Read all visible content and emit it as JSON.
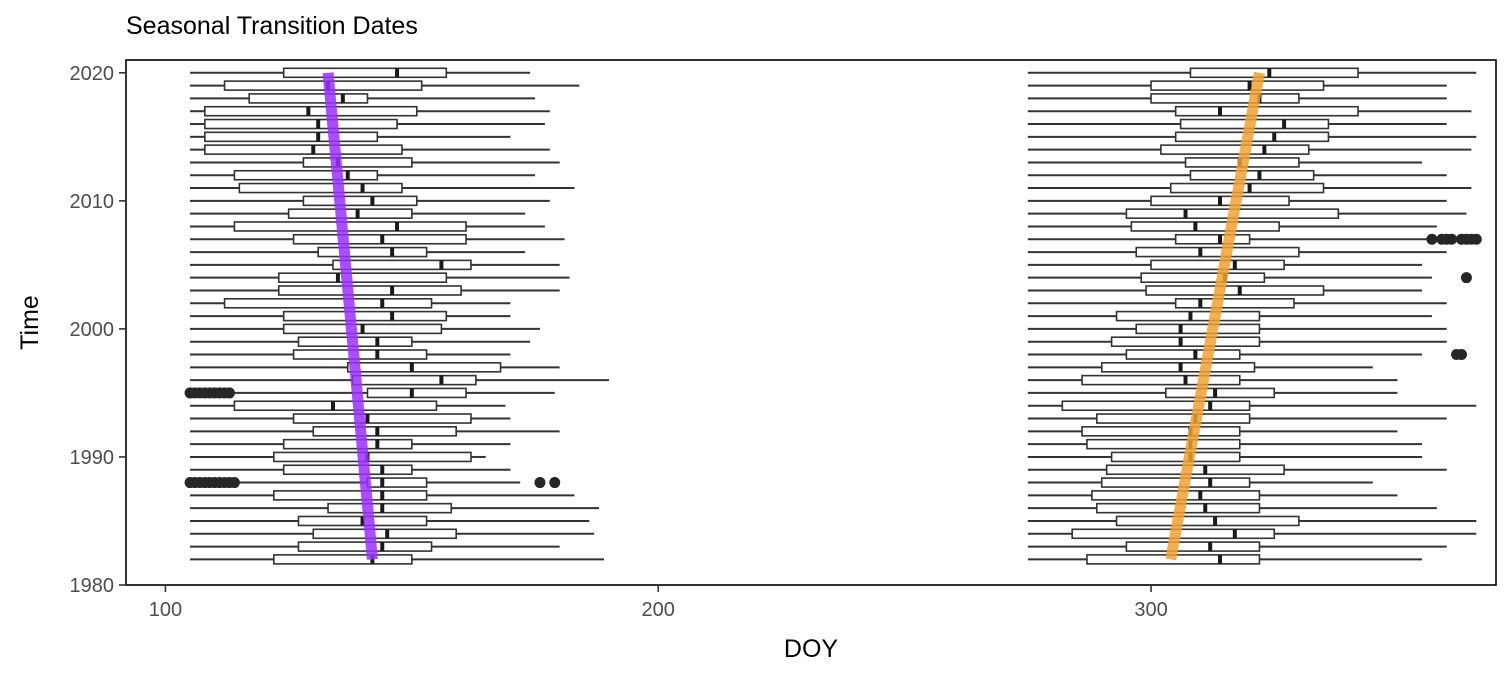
{
  "chart_data": {
    "type": "boxplot",
    "title": "Seasonal Transition Dates",
    "xlabel": "DOY",
    "ylabel": "Time",
    "xlim": [
      92,
      370
    ],
    "ylim": [
      1980,
      2021
    ],
    "x_ticks": [
      100,
      200,
      300
    ],
    "y_ticks": [
      1980,
      1990,
      2000,
      2010,
      2020
    ],
    "grid": false,
    "colors": {
      "spring_trend": "#9b30ff",
      "fall_trend": "#f0a030",
      "box": "#333333"
    },
    "trend_lines": [
      {
        "id": "spring",
        "from": [
          142,
          1982
        ],
        "to": [
          133,
          2020
        ]
      },
      {
        "id": "fall",
        "from": [
          304,
          1982
        ],
        "to": [
          322,
          2020
        ]
      }
    ],
    "series": [
      {
        "id": "spring",
        "boxes": [
          {
            "year": 1982,
            "w0": 105,
            "q1": 122,
            "med": 142,
            "q3": 150,
            "w1": 189
          },
          {
            "year": 1983,
            "w0": 105,
            "q1": 127,
            "med": 144,
            "q3": 154,
            "w1": 180
          },
          {
            "year": 1984,
            "w0": 105,
            "q1": 130,
            "med": 145,
            "q3": 159,
            "w1": 187
          },
          {
            "year": 1985,
            "w0": 105,
            "q1": 127,
            "med": 140,
            "q3": 153,
            "w1": 186
          },
          {
            "year": 1986,
            "w0": 105,
            "q1": 133,
            "med": 144,
            "q3": 158,
            "w1": 188
          },
          {
            "year": 1987,
            "w0": 105,
            "q1": 122,
            "med": 144,
            "q3": 153,
            "w1": 183
          },
          {
            "year": 1988,
            "w0": 105,
            "q1": 141,
            "med": 144,
            "q3": 153,
            "w1": 172
          },
          {
            "year": 1989,
            "w0": 105,
            "q1": 124,
            "med": 144,
            "q3": 150,
            "w1": 170
          },
          {
            "year": 1990,
            "w0": 105,
            "q1": 122,
            "med": 141,
            "q3": 162,
            "w1": 165
          },
          {
            "year": 1991,
            "w0": 105,
            "q1": 124,
            "med": 143,
            "q3": 150,
            "w1": 170
          },
          {
            "year": 1992,
            "w0": 105,
            "q1": 130,
            "med": 143,
            "q3": 159,
            "w1": 180
          },
          {
            "year": 1993,
            "w0": 105,
            "q1": 126,
            "med": 141,
            "q3": 162,
            "w1": 170
          },
          {
            "year": 1994,
            "w0": 105,
            "q1": 114,
            "med": 134,
            "q3": 155,
            "w1": 169
          },
          {
            "year": 1995,
            "w0": 105,
            "q1": 141,
            "med": 150,
            "q3": 161,
            "w1": 179
          },
          {
            "year": 1996,
            "w0": 105,
            "q1": 138,
            "med": 156,
            "q3": 163,
            "w1": 190
          },
          {
            "year": 1997,
            "w0": 105,
            "q1": 137,
            "med": 150,
            "q3": 168,
            "w1": 180
          },
          {
            "year": 1998,
            "w0": 105,
            "q1": 126,
            "med": 143,
            "q3": 153,
            "w1": 170
          },
          {
            "year": 1999,
            "w0": 105,
            "q1": 127,
            "med": 143,
            "q3": 150,
            "w1": 174
          },
          {
            "year": 2000,
            "w0": 105,
            "q1": 124,
            "med": 140,
            "q3": 156,
            "w1": 176
          },
          {
            "year": 2001,
            "w0": 105,
            "q1": 124,
            "med": 146,
            "q3": 157,
            "w1": 170
          },
          {
            "year": 2002,
            "w0": 105,
            "q1": 112,
            "med": 144,
            "q3": 154,
            "w1": 170
          },
          {
            "year": 2003,
            "w0": 105,
            "q1": 123,
            "med": 146,
            "q3": 160,
            "w1": 180
          },
          {
            "year": 2004,
            "w0": 105,
            "q1": 123,
            "med": 135,
            "q3": 157,
            "w1": 182
          },
          {
            "year": 2005,
            "w0": 105,
            "q1": 134,
            "med": 156,
            "q3": 162,
            "w1": 180
          },
          {
            "year": 2006,
            "w0": 105,
            "q1": 131,
            "med": 146,
            "q3": 153,
            "w1": 173
          },
          {
            "year": 2007,
            "w0": 105,
            "q1": 126,
            "med": 144,
            "q3": 161,
            "w1": 181
          },
          {
            "year": 2008,
            "w0": 105,
            "q1": 114,
            "med": 147,
            "q3": 161,
            "w1": 177
          },
          {
            "year": 2009,
            "w0": 105,
            "q1": 125,
            "med": 139,
            "q3": 150,
            "w1": 173
          },
          {
            "year": 2010,
            "w0": 105,
            "q1": 128,
            "med": 142,
            "q3": 151,
            "w1": 178
          },
          {
            "year": 2011,
            "w0": 105,
            "q1": 115,
            "med": 140,
            "q3": 148,
            "w1": 183
          },
          {
            "year": 2012,
            "w0": 105,
            "q1": 114,
            "med": 137,
            "q3": 143,
            "w1": 175
          },
          {
            "year": 2013,
            "w0": 105,
            "q1": 128,
            "med": 135,
            "q3": 150,
            "w1": 180
          },
          {
            "year": 2014,
            "w0": 105,
            "q1": 108,
            "med": 130,
            "q3": 148,
            "w1": 178
          },
          {
            "year": 2015,
            "w0": 105,
            "q1": 108,
            "med": 131,
            "q3": 143,
            "w1": 170
          },
          {
            "year": 2016,
            "w0": 105,
            "q1": 108,
            "med": 131,
            "q3": 147,
            "w1": 177
          },
          {
            "year": 2017,
            "w0": 105,
            "q1": 108,
            "med": 129,
            "q3": 151,
            "w1": 178
          },
          {
            "year": 2018,
            "w0": 105,
            "q1": 117,
            "med": 136,
            "q3": 141,
            "w1": 175
          },
          {
            "year": 2019,
            "w0": 105,
            "q1": 112,
            "med": 133,
            "q3": 152,
            "w1": 184
          },
          {
            "year": 2020,
            "w0": 105,
            "q1": 124,
            "med": 147,
            "q3": 157,
            "w1": 174
          }
        ],
        "outliers": [
          {
            "year": 1988,
            "values": [
              105,
              106,
              107,
              108,
              109,
              110,
              111,
              112,
              113,
              114,
              176,
              179
            ]
          },
          {
            "year": 1995,
            "values": [
              105,
              106,
              107,
              108,
              109,
              110,
              111,
              112,
              113
            ]
          }
        ]
      },
      {
        "id": "fall",
        "boxes": [
          {
            "year": 1982,
            "w0": 275,
            "q1": 287,
            "med": 314,
            "q3": 322,
            "w1": 355
          },
          {
            "year": 1983,
            "w0": 275,
            "q1": 295,
            "med": 312,
            "q3": 322,
            "w1": 360
          },
          {
            "year": 1984,
            "w0": 275,
            "q1": 284,
            "med": 317,
            "q3": 325,
            "w1": 366
          },
          {
            "year": 1985,
            "w0": 275,
            "q1": 293,
            "med": 313,
            "q3": 330,
            "w1": 366
          },
          {
            "year": 1986,
            "w0": 275,
            "q1": 289,
            "med": 311,
            "q3": 322,
            "w1": 358
          },
          {
            "year": 1987,
            "w0": 275,
            "q1": 288,
            "med": 310,
            "q3": 322,
            "w1": 350
          },
          {
            "year": 1988,
            "w0": 275,
            "q1": 290,
            "med": 312,
            "q3": 320,
            "w1": 345
          },
          {
            "year": 1989,
            "w0": 275,
            "q1": 291,
            "med": 311,
            "q3": 327,
            "w1": 360
          },
          {
            "year": 1990,
            "w0": 275,
            "q1": 292,
            "med": 308,
            "q3": 318,
            "w1": 355
          },
          {
            "year": 1991,
            "w0": 275,
            "q1": 287,
            "med": 308,
            "q3": 318,
            "w1": 355
          },
          {
            "year": 1992,
            "w0": 275,
            "q1": 286,
            "med": 308,
            "q3": 318,
            "w1": 350
          },
          {
            "year": 1993,
            "w0": 275,
            "q1": 289,
            "med": 309,
            "q3": 320,
            "w1": 360
          },
          {
            "year": 1994,
            "w0": 275,
            "q1": 282,
            "med": 312,
            "q3": 320,
            "w1": 366
          },
          {
            "year": 1995,
            "w0": 275,
            "q1": 303,
            "med": 313,
            "q3": 325,
            "w1": 350
          },
          {
            "year": 1996,
            "w0": 275,
            "q1": 286,
            "med": 307,
            "q3": 318,
            "w1": 350
          },
          {
            "year": 1997,
            "w0": 275,
            "q1": 290,
            "med": 306,
            "q3": 321,
            "w1": 345
          },
          {
            "year": 1998,
            "w0": 275,
            "q1": 295,
            "med": 309,
            "q3": 318,
            "w1": 355
          },
          {
            "year": 1999,
            "w0": 275,
            "q1": 292,
            "med": 306,
            "q3": 322,
            "w1": 360
          },
          {
            "year": 2000,
            "w0": 275,
            "q1": 297,
            "med": 306,
            "q3": 322,
            "w1": 360
          },
          {
            "year": 2001,
            "w0": 275,
            "q1": 293,
            "med": 308,
            "q3": 322,
            "w1": 357
          },
          {
            "year": 2002,
            "w0": 275,
            "q1": 305,
            "med": 310,
            "q3": 329,
            "w1": 360
          },
          {
            "year": 2003,
            "w0": 275,
            "q1": 299,
            "med": 318,
            "q3": 335,
            "w1": 355
          },
          {
            "year": 2004,
            "w0": 275,
            "q1": 298,
            "med": 315,
            "q3": 323,
            "w1": 357
          },
          {
            "year": 2005,
            "w0": 275,
            "q1": 300,
            "med": 317,
            "q3": 327,
            "w1": 355
          },
          {
            "year": 2006,
            "w0": 275,
            "q1": 297,
            "med": 310,
            "q3": 330,
            "w1": 360
          },
          {
            "year": 2007,
            "w0": 275,
            "q1": 305,
            "med": 314,
            "q3": 320,
            "w1": 362
          },
          {
            "year": 2008,
            "w0": 275,
            "q1": 296,
            "med": 309,
            "q3": 326,
            "w1": 358
          },
          {
            "year": 2009,
            "w0": 275,
            "q1": 295,
            "med": 307,
            "q3": 338,
            "w1": 364
          },
          {
            "year": 2010,
            "w0": 275,
            "q1": 300,
            "med": 314,
            "q3": 328,
            "w1": 360
          },
          {
            "year": 2011,
            "w0": 275,
            "q1": 304,
            "med": 320,
            "q3": 335,
            "w1": 365
          },
          {
            "year": 2012,
            "w0": 275,
            "q1": 308,
            "med": 322,
            "q3": 333,
            "w1": 360
          },
          {
            "year": 2013,
            "w0": 275,
            "q1": 307,
            "med": 318,
            "q3": 330,
            "w1": 355
          },
          {
            "year": 2014,
            "w0": 275,
            "q1": 302,
            "med": 323,
            "q3": 332,
            "w1": 365
          },
          {
            "year": 2015,
            "w0": 275,
            "q1": 305,
            "med": 325,
            "q3": 336,
            "w1": 366
          },
          {
            "year": 2016,
            "w0": 275,
            "q1": 306,
            "med": 327,
            "q3": 336,
            "w1": 360
          },
          {
            "year": 2017,
            "w0": 275,
            "q1": 305,
            "med": 314,
            "q3": 342,
            "w1": 365
          },
          {
            "year": 2018,
            "w0": 275,
            "q1": 300,
            "med": 322,
            "q3": 330,
            "w1": 360
          },
          {
            "year": 2019,
            "w0": 275,
            "q1": 300,
            "med": 320,
            "q3": 335,
            "w1": 360
          },
          {
            "year": 2020,
            "w0": 275,
            "q1": 308,
            "med": 324,
            "q3": 342,
            "w1": 366
          }
        ],
        "outliers": [
          {
            "year": 1998,
            "values": [
              362,
              363
            ]
          },
          {
            "year": 2004,
            "values": [
              364
            ]
          },
          {
            "year": 2007,
            "values": [
              357,
              359,
              360,
              361,
              363,
              364,
              365,
              366
            ]
          }
        ]
      }
    ]
  }
}
